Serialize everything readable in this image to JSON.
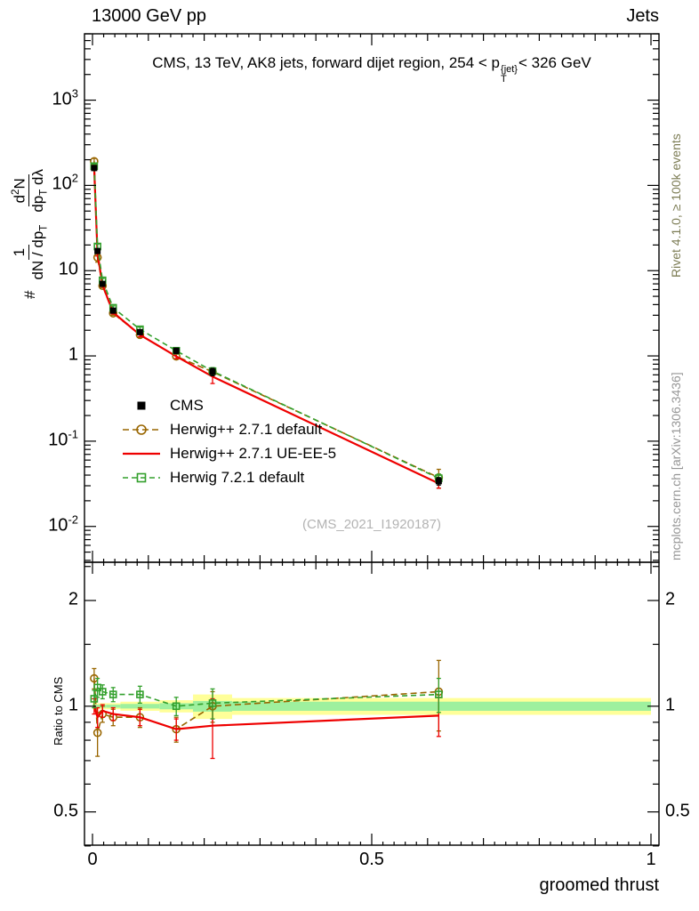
{
  "header": {
    "left": "13000 GeV pp",
    "right": "Jets"
  },
  "title": {
    "pre": "CMS, 13 TeV, AK8 jets, forward dijet region, 254 < p",
    "sup": "{jet}",
    "sub": "T",
    "post": "< 326 GeV"
  },
  "ylabel": {
    "prefix": "#",
    "f1_num": "1",
    "f1_den": "dN / dp",
    "f1_den_sub": "T",
    "f2_num": "d",
    "f2_num_sup": "2",
    "f2_num_post": "N",
    "f2_den": "dp",
    "f2_den_sub": "T",
    "f2_den_post": " dλ"
  },
  "ratio_ylabel": "Ratio to CMS",
  "xlabel": "groomed thrust",
  "watermark": "(CMS_2021_I1920187)",
  "side_top": "Rivet 4.1.0, ≥ 100k events",
  "side_bottom": "mcplots.cern.ch [arXiv:1306.3436]",
  "colors": {
    "frame": "#000000",
    "watermark": "#b3b3b3",
    "side_top": "#7c7c54",
    "side_bottom": "#969696",
    "band_outer": "#ffff99",
    "band_inner": "#9ef09e"
  },
  "chart_data": {
    "type": "line",
    "title": "CMS, 13 TeV, AK8 jets, forward dijet region, 254 < pT{jet} < 326 GeV",
    "xlabel": "groomed thrust",
    "ylabel": "# 1/(dN/dpT) d2N/(dpT dlambda)",
    "ratio_label": "Ratio to CMS",
    "ylog": true,
    "xlim": [
      0,
      1
    ],
    "ylim_main": [
      0.0038,
      6000
    ],
    "ylim_ratio": [
      0.402,
      2.57
    ],
    "x_centers": [
      0.003,
      0.009,
      0.018,
      0.037,
      0.085,
      0.15,
      0.215,
      0.62
    ],
    "bin_edges": [
      0,
      0.006,
      0.012,
      0.025,
      0.05,
      0.12,
      0.18,
      0.25,
      1.0
    ],
    "series": [
      {
        "name": "CMS",
        "color": "#000000",
        "line": "none",
        "marker": "square-filled",
        "dash": null,
        "values": [
          160,
          17,
          7,
          3.4,
          1.9,
          1.15,
          0.65,
          0.034
        ],
        "err": [
          0.06,
          0.06,
          0.05,
          0.05,
          0.06,
          0.07,
          0.1,
          0.1
        ]
      },
      {
        "name": "Herwig++ 2.7.1 default",
        "color": "#996600",
        "line": "dashed",
        "marker": "circle-open",
        "dash": "7,4",
        "ratio_to_cms": [
          1.2,
          0.84,
          0.95,
          0.93,
          0.93,
          0.86,
          1.0,
          1.1
        ],
        "err": [
          0.08,
          0.12,
          0.05,
          0.05,
          0.06,
          0.07,
          0.1,
          0.25
        ]
      },
      {
        "name": "Herwig++ 2.7.1 UE-EE-5",
        "color": "#ee0000",
        "line": "solid",
        "marker": "none",
        "dash": null,
        "ratio_to_cms": [
          1.0,
          0.93,
          0.97,
          0.95,
          0.93,
          0.86,
          0.88,
          0.94
        ],
        "err": [
          0.05,
          0.06,
          0.04,
          0.04,
          0.05,
          0.06,
          0.17,
          0.12
        ]
      },
      {
        "name": "Herwig 7.2.1 default",
        "color": "#33a02c",
        "line": "dashed",
        "marker": "square-open",
        "dash": "6,4",
        "ratio_to_cms": [
          1.05,
          1.13,
          1.1,
          1.08,
          1.08,
          1.0,
          1.02,
          1.08
        ],
        "err": [
          0.06,
          0.07,
          0.05,
          0.05,
          0.06,
          0.06,
          0.1,
          0.12
        ]
      }
    ],
    "ratio_band": {
      "outer": [
        0.02,
        0.02,
        0.02,
        0.02,
        0.03,
        0.04,
        0.08,
        0.055
      ],
      "inner": [
        0.01,
        0.01,
        0.01,
        0.01,
        0.015,
        0.02,
        0.035,
        0.03
      ]
    },
    "axes": {
      "y_main_ticks": {
        "values": [
          1000,
          100,
          10,
          1,
          0.1,
          0.01
        ],
        "labels": [
          "10^3",
          "10^2",
          "10",
          "1",
          "10^-1",
          "10^-2"
        ]
      },
      "y_ratio_ticks": {
        "values": [
          2,
          1,
          0.5
        ],
        "labels": [
          "2",
          "1",
          "0.5"
        ]
      },
      "y_ratio_minor": [
        0.4,
        0.6,
        0.7,
        0.8,
        0.9,
        1.5,
        2.5
      ],
      "x_ticks": {
        "values": [
          0,
          0.5,
          1
        ],
        "labels": [
          "0",
          "0.5",
          "1"
        ]
      }
    },
    "legend_position": "center-left"
  }
}
